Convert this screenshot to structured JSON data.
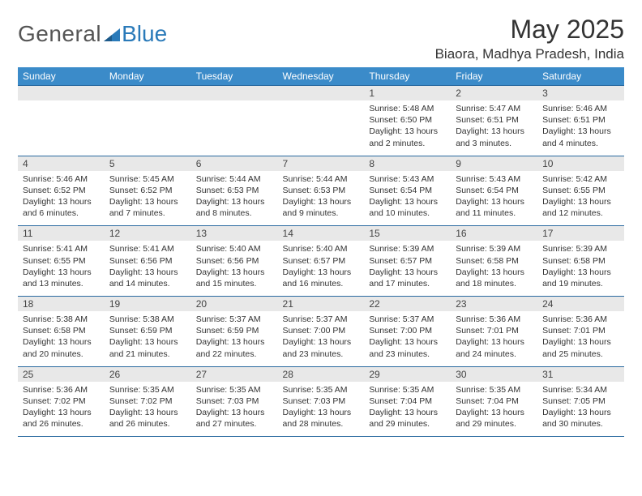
{
  "logo": {
    "general": "General",
    "blue": "Blue"
  },
  "title": "May 2025",
  "location": "Biaora, Madhya Pradesh, India",
  "colors": {
    "header_bg": "#3b8bc9",
    "border": "#2a6aa0",
    "daynum_bg": "#e8e8e8",
    "logo_blue": "#2a7ab9",
    "body_text": "#333333"
  },
  "day_headers": [
    "Sunday",
    "Monday",
    "Tuesday",
    "Wednesday",
    "Thursday",
    "Friday",
    "Saturday"
  ],
  "weeks": [
    [
      null,
      null,
      null,
      null,
      {
        "n": "1",
        "sr": "5:48 AM",
        "ss": "6:50 PM",
        "d": "13 hours and 2 minutes."
      },
      {
        "n": "2",
        "sr": "5:47 AM",
        "ss": "6:51 PM",
        "d": "13 hours and 3 minutes."
      },
      {
        "n": "3",
        "sr": "5:46 AM",
        "ss": "6:51 PM",
        "d": "13 hours and 4 minutes."
      }
    ],
    [
      {
        "n": "4",
        "sr": "5:46 AM",
        "ss": "6:52 PM",
        "d": "13 hours and 6 minutes."
      },
      {
        "n": "5",
        "sr": "5:45 AM",
        "ss": "6:52 PM",
        "d": "13 hours and 7 minutes."
      },
      {
        "n": "6",
        "sr": "5:44 AM",
        "ss": "6:53 PM",
        "d": "13 hours and 8 minutes."
      },
      {
        "n": "7",
        "sr": "5:44 AM",
        "ss": "6:53 PM",
        "d": "13 hours and 9 minutes."
      },
      {
        "n": "8",
        "sr": "5:43 AM",
        "ss": "6:54 PM",
        "d": "13 hours and 10 minutes."
      },
      {
        "n": "9",
        "sr": "5:43 AM",
        "ss": "6:54 PM",
        "d": "13 hours and 11 minutes."
      },
      {
        "n": "10",
        "sr": "5:42 AM",
        "ss": "6:55 PM",
        "d": "13 hours and 12 minutes."
      }
    ],
    [
      {
        "n": "11",
        "sr": "5:41 AM",
        "ss": "6:55 PM",
        "d": "13 hours and 13 minutes."
      },
      {
        "n": "12",
        "sr": "5:41 AM",
        "ss": "6:56 PM",
        "d": "13 hours and 14 minutes."
      },
      {
        "n": "13",
        "sr": "5:40 AM",
        "ss": "6:56 PM",
        "d": "13 hours and 15 minutes."
      },
      {
        "n": "14",
        "sr": "5:40 AM",
        "ss": "6:57 PM",
        "d": "13 hours and 16 minutes."
      },
      {
        "n": "15",
        "sr": "5:39 AM",
        "ss": "6:57 PM",
        "d": "13 hours and 17 minutes."
      },
      {
        "n": "16",
        "sr": "5:39 AM",
        "ss": "6:58 PM",
        "d": "13 hours and 18 minutes."
      },
      {
        "n": "17",
        "sr": "5:39 AM",
        "ss": "6:58 PM",
        "d": "13 hours and 19 minutes."
      }
    ],
    [
      {
        "n": "18",
        "sr": "5:38 AM",
        "ss": "6:58 PM",
        "d": "13 hours and 20 minutes."
      },
      {
        "n": "19",
        "sr": "5:38 AM",
        "ss": "6:59 PM",
        "d": "13 hours and 21 minutes."
      },
      {
        "n": "20",
        "sr": "5:37 AM",
        "ss": "6:59 PM",
        "d": "13 hours and 22 minutes."
      },
      {
        "n": "21",
        "sr": "5:37 AM",
        "ss": "7:00 PM",
        "d": "13 hours and 23 minutes."
      },
      {
        "n": "22",
        "sr": "5:37 AM",
        "ss": "7:00 PM",
        "d": "13 hours and 23 minutes."
      },
      {
        "n": "23",
        "sr": "5:36 AM",
        "ss": "7:01 PM",
        "d": "13 hours and 24 minutes."
      },
      {
        "n": "24",
        "sr": "5:36 AM",
        "ss": "7:01 PM",
        "d": "13 hours and 25 minutes."
      }
    ],
    [
      {
        "n": "25",
        "sr": "5:36 AM",
        "ss": "7:02 PM",
        "d": "13 hours and 26 minutes."
      },
      {
        "n": "26",
        "sr": "5:35 AM",
        "ss": "7:02 PM",
        "d": "13 hours and 26 minutes."
      },
      {
        "n": "27",
        "sr": "5:35 AM",
        "ss": "7:03 PM",
        "d": "13 hours and 27 minutes."
      },
      {
        "n": "28",
        "sr": "5:35 AM",
        "ss": "7:03 PM",
        "d": "13 hours and 28 minutes."
      },
      {
        "n": "29",
        "sr": "5:35 AM",
        "ss": "7:04 PM",
        "d": "13 hours and 29 minutes."
      },
      {
        "n": "30",
        "sr": "5:35 AM",
        "ss": "7:04 PM",
        "d": "13 hours and 29 minutes."
      },
      {
        "n": "31",
        "sr": "5:34 AM",
        "ss": "7:05 PM",
        "d": "13 hours and 30 minutes."
      }
    ]
  ],
  "labels": {
    "sunrise": "Sunrise:",
    "sunset": "Sunset:",
    "daylight": "Daylight:"
  }
}
